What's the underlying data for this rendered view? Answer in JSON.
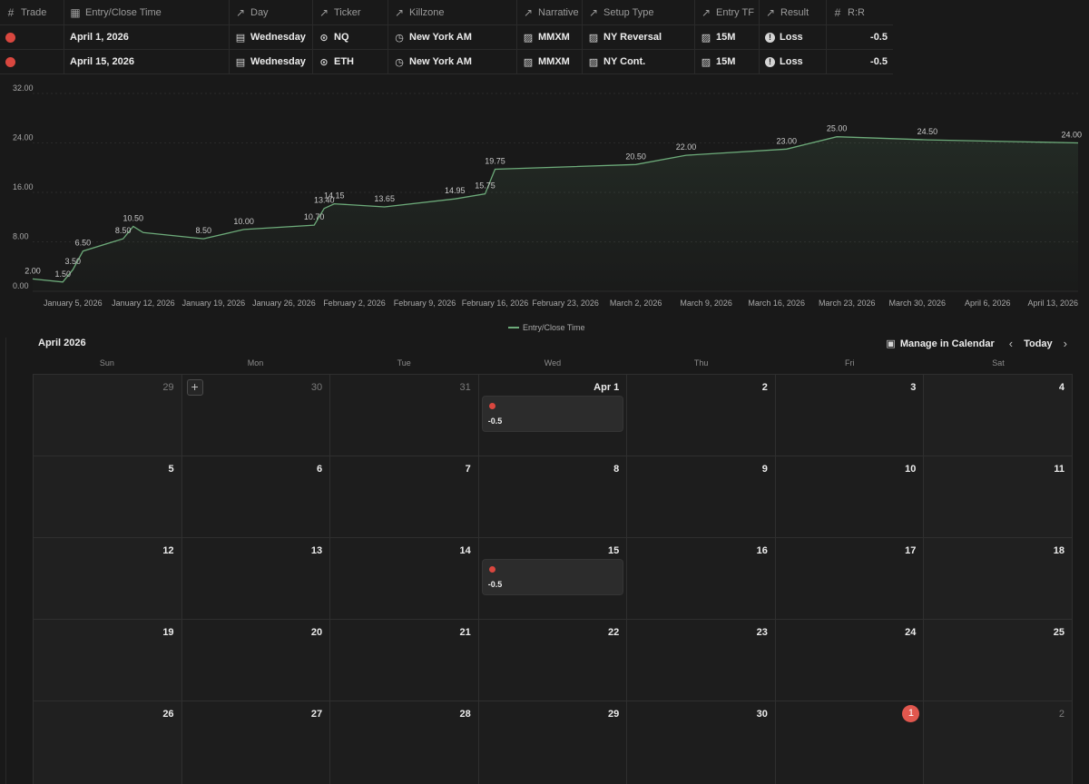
{
  "table": {
    "headers": [
      {
        "icon": "#",
        "icon_name": "number-icon",
        "label": "Trade"
      },
      {
        "icon": "▦",
        "icon_name": "calendar-icon",
        "label": "Entry/Close Time"
      },
      {
        "icon": "↗",
        "icon_name": "relation-arrow-icon",
        "label": "Day"
      },
      {
        "icon": "↗",
        "icon_name": "relation-arrow-icon",
        "label": "Ticker"
      },
      {
        "icon": "↗",
        "icon_name": "relation-arrow-icon",
        "label": "Killzone"
      },
      {
        "icon": "↗",
        "icon_name": "relation-arrow-icon",
        "label": "Narrative"
      },
      {
        "icon": "↗",
        "icon_name": "relation-arrow-icon",
        "label": "Setup Type"
      },
      {
        "icon": "↗",
        "icon_name": "relation-arrow-icon",
        "label": "Entry TF"
      },
      {
        "icon": "↗",
        "icon_name": "relation-arrow-icon",
        "label": "Result"
      },
      {
        "icon": "#",
        "icon_name": "number-icon",
        "label": "R:R"
      }
    ],
    "rows": [
      {
        "date": "April 1, 2026",
        "day": "Wednesday",
        "ticker": "NQ",
        "killzone": "New York AM",
        "narrative": "MMXM",
        "setup": "NY Reversal",
        "tf": "15M",
        "result": "Loss",
        "rr": "-0.5"
      },
      {
        "date": "April 15, 2026",
        "day": "Wednesday",
        "ticker": "ETH",
        "killzone": "New York AM",
        "narrative": "MMXM",
        "setup": "NY Cont.",
        "tf": "15M",
        "result": "Loss",
        "rr": "-0.5"
      }
    ]
  },
  "chart_data": {
    "type": "area",
    "x": [
      "2026-01-01",
      "2026-01-04",
      "2026-01-05",
      "2026-01-06",
      "2026-01-10",
      "2026-01-11",
      "2026-01-12",
      "2026-01-18",
      "2026-01-22",
      "2026-01-29",
      "2026-01-30",
      "2026-01-31",
      "2026-02-05",
      "2026-02-12",
      "2026-02-15",
      "2026-02-16",
      "2026-03-02",
      "2026-03-07",
      "2026-03-17",
      "2026-03-22",
      "2026-03-31",
      "2026-04-15"
    ],
    "values": [
      2.0,
      1.5,
      3.5,
      6.5,
      8.5,
      10.5,
      9.5,
      8.5,
      10.0,
      10.7,
      13.4,
      14.15,
      13.65,
      14.95,
      15.75,
      19.75,
      20.5,
      22.0,
      23.0,
      25.0,
      24.5,
      24.0
    ],
    "point_labels": [
      "2.00",
      "1.50",
      "3.50",
      "6.50",
      "8.50",
      "10.50",
      "",
      "8.50",
      "10.00",
      "10.70",
      "13.40",
      "14.15",
      "13.65",
      "14.95",
      "15.75",
      "19.75",
      "20.50",
      "22.00",
      "23.00",
      "25.00",
      "24.50",
      "24.00"
    ],
    "x_tick_labels": [
      "January 5, 2026",
      "January 12, 2026",
      "January 19, 2026",
      "January 26, 2026",
      "February 2, 2026",
      "February 9, 2026",
      "February 16, 2026",
      "February 23, 2026",
      "March 2, 2026",
      "March 9, 2026",
      "March 16, 2026",
      "March 23, 2026",
      "March 30, 2026",
      "April 6, 2026",
      "April 13, 2026"
    ],
    "y_ticks": [
      "0.00",
      "8.00",
      "16.00",
      "24.00",
      "32.00"
    ],
    "ylim": [
      0,
      32
    ],
    "legend": "Entry/Close Time",
    "legend_position": "bottom-center",
    "line_color": "#6dab7a",
    "grid": true
  },
  "calendar": {
    "title": "April 2026",
    "manage_label": "Manage in Calendar",
    "today_label": "Today",
    "weekdays": [
      "Sun",
      "Mon",
      "Tue",
      "Wed",
      "Thu",
      "Fri",
      "Sat"
    ],
    "days": [
      {
        "n": "29",
        "other": true
      },
      {
        "n": "30",
        "other": true,
        "add": true
      },
      {
        "n": "31",
        "other": true
      },
      {
        "n": "Apr 1",
        "event": "-0.5"
      },
      {
        "n": "2"
      },
      {
        "n": "3"
      },
      {
        "n": "4"
      },
      {
        "n": "5"
      },
      {
        "n": "6"
      },
      {
        "n": "7"
      },
      {
        "n": "8"
      },
      {
        "n": "9"
      },
      {
        "n": "10"
      },
      {
        "n": "11"
      },
      {
        "n": "12"
      },
      {
        "n": "13"
      },
      {
        "n": "14"
      },
      {
        "n": "15",
        "event": "-0.5"
      },
      {
        "n": "16"
      },
      {
        "n": "17"
      },
      {
        "n": "18"
      },
      {
        "n": "19"
      },
      {
        "n": "20"
      },
      {
        "n": "21"
      },
      {
        "n": "22"
      },
      {
        "n": "23"
      },
      {
        "n": "24"
      },
      {
        "n": "25"
      },
      {
        "n": "26"
      },
      {
        "n": "27"
      },
      {
        "n": "28"
      },
      {
        "n": "29"
      },
      {
        "n": "30"
      },
      {
        "n": "1",
        "today": true
      },
      {
        "n": "2",
        "other": true
      }
    ],
    "event_color": "#d9473f",
    "today_color": "#e1574e"
  }
}
